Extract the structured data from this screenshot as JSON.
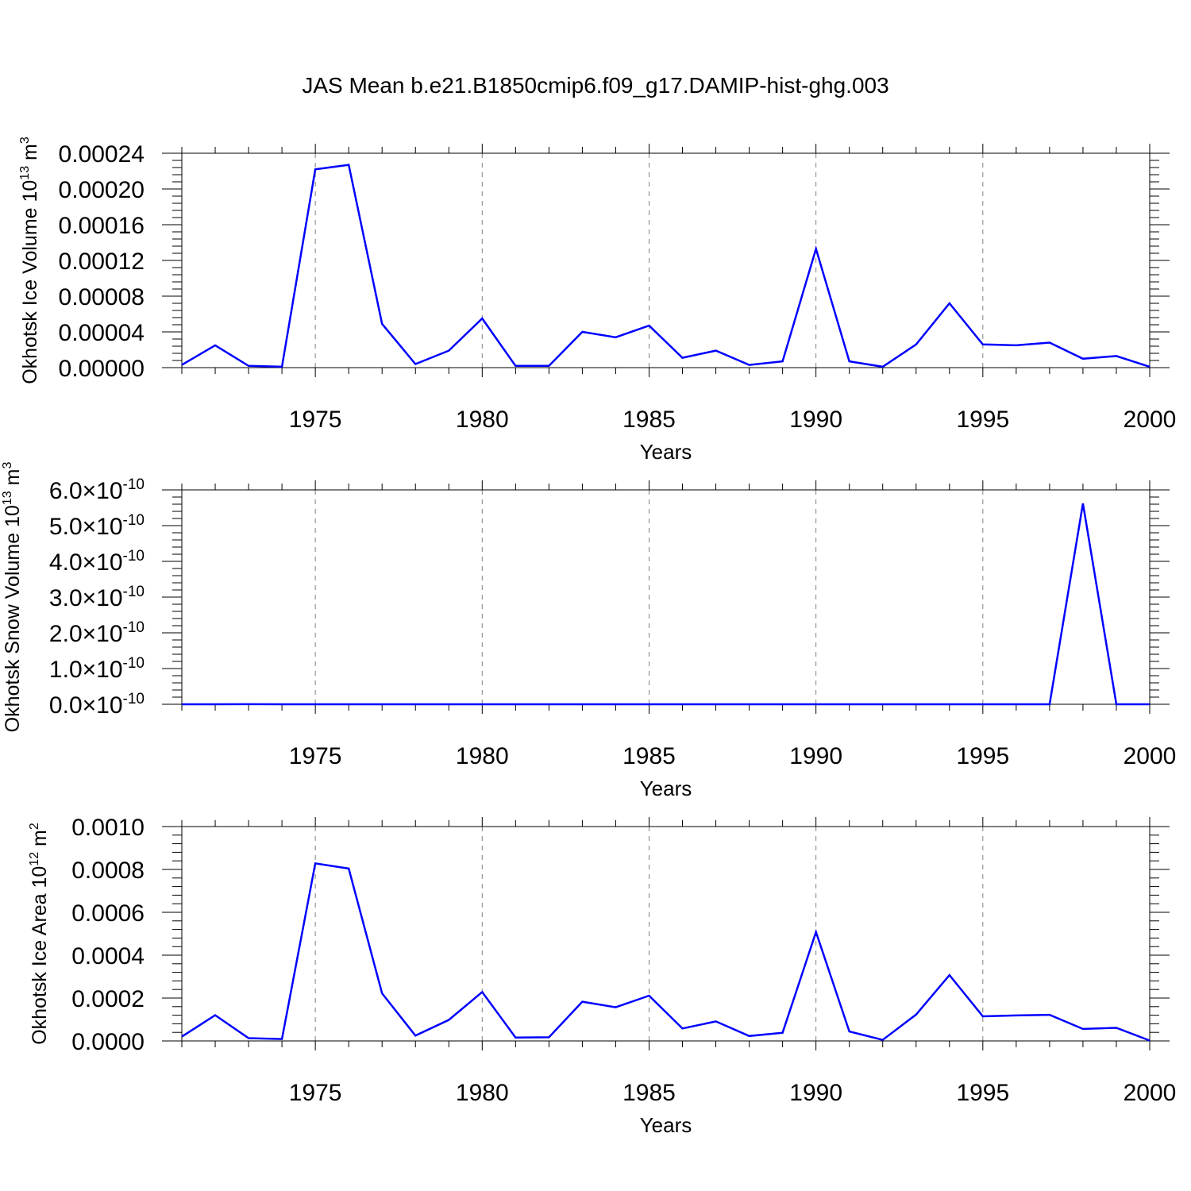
{
  "title": "JAS Mean b.e21.B1850cmip6.f09_g17.DAMIP-hist-ghg.003",
  "colors": {
    "line": "#0000ff",
    "axis": "#000000",
    "grid": "#808080"
  },
  "chart_data": [
    {
      "type": "line",
      "ylabel": "Okhotsk Ice Volume 10",
      "ylabel_exp": "13",
      "ylabel_unit": " m",
      "ylabel_unit_exp": "3",
      "xlabel": "Years",
      "xlim": [
        1971,
        2000
      ],
      "ylim": [
        0,
        0.00024
      ],
      "x_ticks": [
        1975,
        1980,
        1985,
        1990,
        1995,
        2000
      ],
      "y_ticks": [
        0,
        4e-05,
        8e-05,
        0.00012,
        0.00016,
        0.0002,
        0.00024
      ],
      "y_tick_labels": [
        "0.00000",
        "0.00004",
        "0.00008",
        "0.00012",
        "0.00016",
        "0.00020",
        "0.00024"
      ],
      "x": [
        1971,
        1972,
        1973,
        1974,
        1975,
        1976,
        1977,
        1978,
        1979,
        1980,
        1981,
        1982,
        1983,
        1984,
        1985,
        1986,
        1987,
        1988,
        1989,
        1990,
        1991,
        1992,
        1993,
        1994,
        1995,
        1996,
        1997,
        1998,
        1999,
        2000
      ],
      "series": [
        {
          "name": "Ice Volume",
          "values": [
            3e-06,
            2.5e-05,
            2e-06,
            1e-06,
            0.000222,
            0.000227,
            4.9e-05,
            4e-06,
            1.9e-05,
            5.5e-05,
            2e-06,
            2e-06,
            4e-05,
            3.4e-05,
            4.7e-05,
            1.1e-05,
            1.9e-05,
            3e-06,
            7e-06,
            0.000133,
            7e-06,
            1e-06,
            2.6e-05,
            7.2e-05,
            2.6e-05,
            2.5e-05,
            2.8e-05,
            1e-05,
            1.3e-05,
            1e-06
          ]
        }
      ]
    },
    {
      "type": "line",
      "ylabel": "Okhotsk Snow Volume 10",
      "ylabel_exp": "13",
      "ylabel_unit": " m",
      "ylabel_unit_exp": "3",
      "xlabel": "Years",
      "xlim": [
        1971,
        2000
      ],
      "ylim": [
        0,
        6e-10
      ],
      "x_ticks": [
        1975,
        1980,
        1985,
        1990,
        1995,
        2000
      ],
      "y_ticks": [
        0,
        1e-10,
        2e-10,
        3e-10,
        4e-10,
        5e-10,
        6e-10
      ],
      "y_tick_labels": [
        "0.0",
        "1.0",
        "2.0",
        "3.0",
        "4.0",
        "5.0",
        "6.0"
      ],
      "y_tick_suffix": "×10",
      "y_tick_exp": "-10",
      "x": [
        1971,
        1972,
        1973,
        1974,
        1975,
        1976,
        1977,
        1978,
        1979,
        1980,
        1981,
        1982,
        1983,
        1984,
        1985,
        1986,
        1987,
        1988,
        1989,
        1990,
        1991,
        1992,
        1993,
        1994,
        1995,
        1996,
        1997,
        1998,
        1999,
        2000
      ],
      "series": [
        {
          "name": "Snow Volume",
          "values": [
            0,
            0,
            2e-13,
            0,
            0,
            0,
            0,
            0,
            0,
            0,
            0,
            0,
            0,
            0,
            0,
            0,
            0,
            0,
            0,
            0,
            0,
            0,
            0,
            0,
            0,
            0,
            0,
            5.62e-10,
            0,
            0
          ]
        }
      ]
    },
    {
      "type": "line",
      "ylabel": "Okhotsk Ice Area 10",
      "ylabel_exp": "12",
      "ylabel_unit": " m",
      "ylabel_unit_exp": "2",
      "xlabel": "Years",
      "xlim": [
        1971,
        2000
      ],
      "ylim": [
        0,
        0.001
      ],
      "x_ticks": [
        1975,
        1980,
        1985,
        1990,
        1995,
        2000
      ],
      "y_ticks": [
        0,
        0.0002,
        0.0004,
        0.0006,
        0.0008,
        0.001
      ],
      "y_tick_labels": [
        "0.0000",
        "0.0002",
        "0.0004",
        "0.0006",
        "0.0008",
        "0.0010"
      ],
      "x": [
        1971,
        1972,
        1973,
        1974,
        1975,
        1976,
        1977,
        1978,
        1979,
        1980,
        1981,
        1982,
        1983,
        1984,
        1985,
        1986,
        1987,
        1988,
        1989,
        1990,
        1991,
        1992,
        1993,
        1994,
        1995,
        1996,
        1997,
        1998,
        1999,
        2000
      ],
      "series": [
        {
          "name": "Ice Area",
          "values": [
            2e-05,
            0.00012,
            1.3e-05,
            9e-06,
            0.000828,
            0.000804,
            0.000222,
            2.5e-05,
            9.8e-05,
            0.000228,
            1.6e-05,
            1.7e-05,
            0.000183,
            0.000157,
            0.000211,
            5.8e-05,
            9.1e-05,
            2.3e-05,
            3.8e-05,
            0.000508,
            4.4e-05,
            5e-06,
            0.000123,
            0.000307,
            0.000115,
            0.000119,
            0.000122,
            5.6e-05,
            6.1e-05,
            2e-06
          ]
        }
      ]
    }
  ]
}
